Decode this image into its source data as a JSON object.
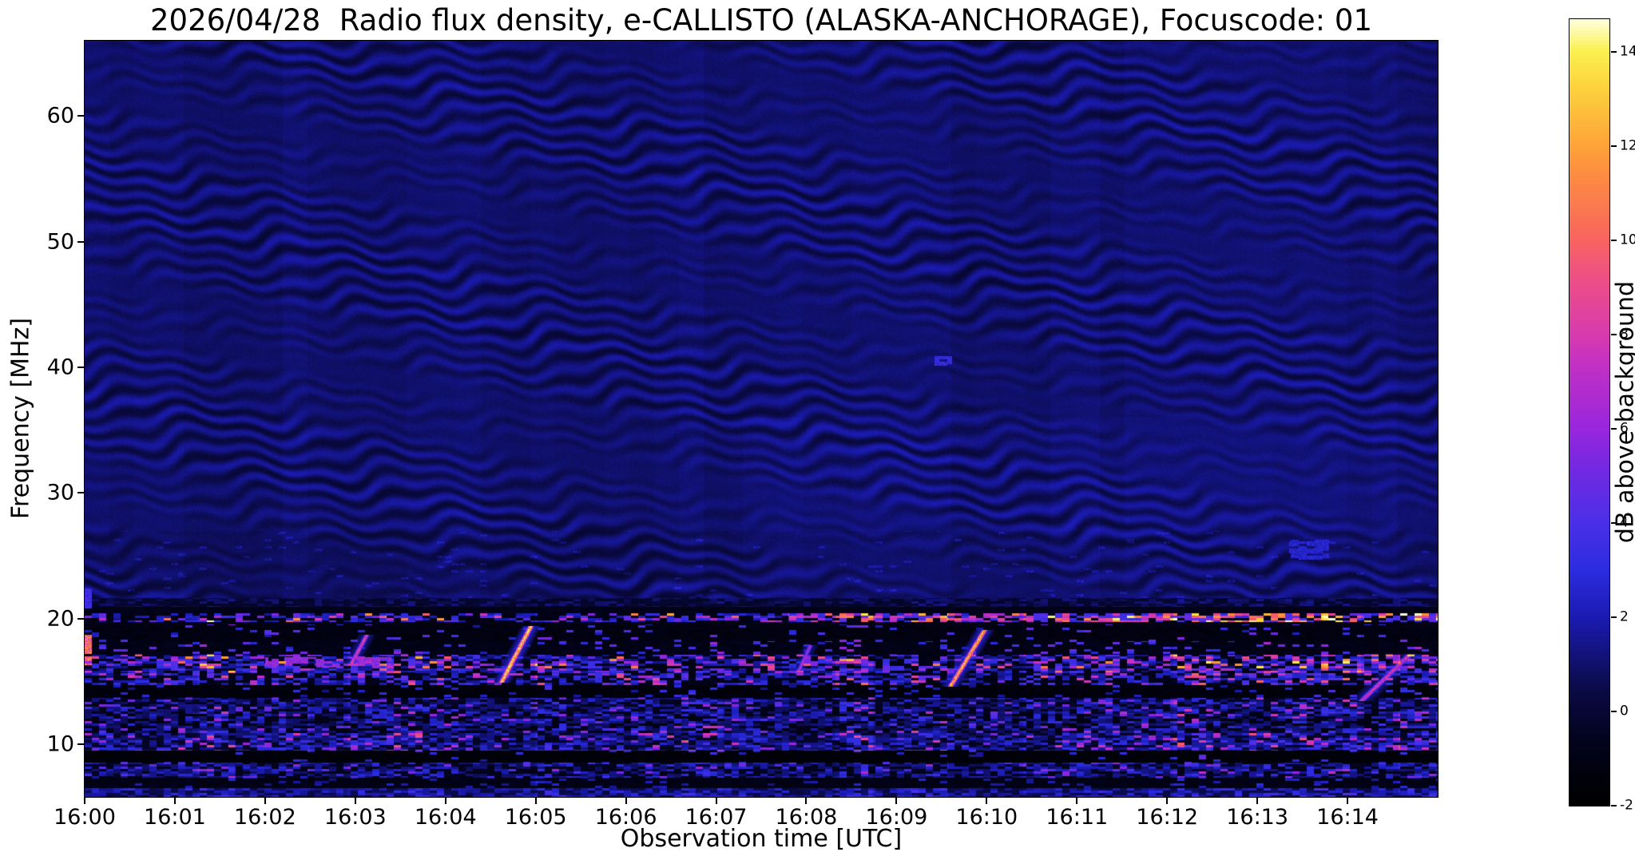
{
  "chart_data": {
    "type": "heatmap",
    "title": "2026/04/28  Radio flux density, e-CALLISTO (ALASKA-ANCHORAGE), Focuscode: 01",
    "date": "2026/04/28",
    "station": "ALASKA-ANCHORAGE",
    "focuscode": "01",
    "xlabel": "Observation time [UTC]",
    "ylabel": "Frequency [MHz]",
    "colorbar_label": "dB above background",
    "x_ticks": [
      "16:00",
      "16:01",
      "16:02",
      "16:03",
      "16:04",
      "16:05",
      "16:06",
      "16:07",
      "16:08",
      "16:09",
      "16:10",
      "16:11",
      "16:12",
      "16:13",
      "16:14"
    ],
    "x_tick_minutes": [
      0,
      1,
      2,
      3,
      4,
      5,
      6,
      7,
      8,
      9,
      10,
      11,
      12,
      13,
      14
    ],
    "x_range_minutes": [
      0,
      15
    ],
    "y_ticks": [
      10,
      20,
      30,
      40,
      50,
      60
    ],
    "y_range_mhz": [
      5.8,
      66
    ],
    "colorbar_ticks": [
      -2,
      0,
      2,
      4,
      6,
      8,
      10,
      12,
      14
    ],
    "value_range_db": [
      -2,
      14.7
    ],
    "layout_hints": {
      "grid": false,
      "legend": "none",
      "colorbar_position": "right",
      "y_axis_direction": "up"
    },
    "colormap_stops": [
      [
        0.0,
        "#000000"
      ],
      [
        0.08,
        "#03031c"
      ],
      [
        0.145,
        "#0a0a44"
      ],
      [
        0.24,
        "#1b1bb3"
      ],
      [
        0.3,
        "#2c2ce0"
      ],
      [
        0.36,
        "#4b2fe8"
      ],
      [
        0.44,
        "#7a28e0"
      ],
      [
        0.48,
        "#9926dd"
      ],
      [
        0.56,
        "#c231c4"
      ],
      [
        0.6,
        "#d83bae"
      ],
      [
        0.68,
        "#f0527f"
      ],
      [
        0.72,
        "#f9645f"
      ],
      [
        0.8,
        "#fd8b41"
      ],
      [
        0.84,
        "#fda338"
      ],
      [
        0.92,
        "#fcd73e"
      ],
      [
        0.96,
        "#fbf04f"
      ],
      [
        1.0,
        "#ffffe0"
      ]
    ],
    "features": [
      "Wavy blue interference ripple pattern across ~22-66 MHz for the whole 15 minutes",
      "Intermittent horizontal RFI line near 20 MHz, noticeably brighter after ~16:08",
      "Broadband noisy RFI bands with bright pink/orange speckles below ~20 MHz",
      "Dark (below-background) horizontal lanes near 9, 14 and 18-19.5 MHz",
      "Bright drifting ionosonde-like streaks near 16:03, 16:05, 16:08, 16:10 and 16:14 between ~13-19.5 MHz",
      "Small bright patch near 40.5 MHz at about 16:09.5"
    ],
    "rfi_bands": [
      {
        "f0": 20.9,
        "f1": 21.6,
        "levels": [
          [
            0.6,
            -0.4,
            0.5
          ],
          [
            1.01,
            0.5,
            0.8
          ]
        ]
      },
      {
        "f0": 20.45,
        "f1": 20.9,
        "levels": [
          [
            1.01,
            -1.0,
            0.4
          ]
        ]
      },
      {
        "f0": 19.7,
        "f1": 20.45,
        "t_split": 7.8,
        "levels": [
          [
            0.5,
            -1.2,
            0.4
          ],
          [
            0.8,
            1.8,
            1.5
          ],
          [
            0.95,
            4.0,
            2.5
          ],
          [
            1.01,
            8.0,
            4.0
          ]
        ],
        "levels_late": [
          [
            0.25,
            -1.0,
            0.4
          ],
          [
            0.5,
            3.0,
            1.5
          ],
          [
            0.82,
            7.0,
            2.5
          ],
          [
            1.01,
            10.0,
            4.0
          ]
        ]
      },
      {
        "f0": 19.55,
        "f1": 19.7,
        "levels": [
          [
            1.01,
            -1.1,
            0.4
          ]
        ]
      },
      {
        "f0": 18.2,
        "f1": 19.55,
        "levels": [
          [
            0.95,
            -1.4,
            0.5
          ],
          [
            1.01,
            2.0,
            3.0
          ]
        ]
      },
      {
        "f0": 17.1,
        "f1": 18.2,
        "levels": [
          [
            0.9,
            -1.2,
            0.6
          ],
          [
            1.01,
            2.5,
            3.0
          ]
        ]
      },
      {
        "f0": 15.7,
        "f1": 17.1,
        "levels": [
          [
            0.35,
            -1.2,
            0.5
          ],
          [
            0.6,
            1.2,
            1.0
          ],
          [
            0.82,
            3.0,
            1.5
          ],
          [
            0.95,
            5.5,
            2.0
          ],
          [
            1.01,
            9.0,
            3.0
          ]
        ]
      },
      {
        "f0": 14.7,
        "f1": 15.7,
        "levels": [
          [
            0.45,
            -1.0,
            0.5
          ],
          [
            0.7,
            1.5,
            1.0
          ],
          [
            0.9,
            3.0,
            1.2
          ],
          [
            1.01,
            6.0,
            3.0
          ]
        ]
      },
      {
        "f0": 13.7,
        "f1": 14.7,
        "levels": [
          [
            0.93,
            -1.6,
            0.4
          ],
          [
            1.01,
            1.5,
            2.0
          ]
        ]
      },
      {
        "f0": 12.5,
        "f1": 13.7,
        "levels": [
          [
            0.4,
            -0.8,
            0.5
          ],
          [
            0.75,
            0.8,
            0.8
          ],
          [
            0.93,
            2.2,
            1.0
          ],
          [
            1.01,
            4.5,
            2.0
          ]
        ]
      },
      {
        "f0": 10.9,
        "f1": 12.5,
        "levels": [
          [
            0.35,
            -1.2,
            0.5
          ],
          [
            0.7,
            0.6,
            0.8
          ],
          [
            0.92,
            2.0,
            1.0
          ],
          [
            1.01,
            4.0,
            3.0
          ]
        ]
      },
      {
        "f0": 9.5,
        "f1": 10.9,
        "levels": [
          [
            0.3,
            -0.6,
            0.5
          ],
          [
            0.65,
            1.0,
            0.8
          ],
          [
            0.9,
            2.5,
            1.0
          ],
          [
            1.01,
            5.0,
            3.0
          ]
        ]
      },
      {
        "f0": 8.55,
        "f1": 9.5,
        "levels": [
          [
            0.96,
            -1.7,
            0.3
          ],
          [
            1.01,
            2.0,
            2.0
          ]
        ]
      },
      {
        "f0": 7.3,
        "f1": 8.55,
        "levels": [
          [
            0.35,
            -0.9,
            0.5
          ],
          [
            0.7,
            0.8,
            0.8
          ],
          [
            0.93,
            2.0,
            1.0
          ],
          [
            1.01,
            4.0,
            2.0
          ]
        ]
      },
      {
        "f0": 6.5,
        "f1": 7.3,
        "levels": [
          [
            0.9,
            -1.2,
            0.5
          ],
          [
            1.01,
            1.5,
            1.0
          ]
        ]
      },
      {
        "f0": 5.8,
        "f1": 6.5,
        "levels": [
          [
            0.4,
            0.3,
            0.5
          ],
          [
            0.8,
            1.5,
            0.8
          ],
          [
            1.01,
            2.5,
            1.0
          ]
        ]
      }
    ],
    "bursts": [
      {
        "t0": 2.95,
        "f_lo": 16.3,
        "f_hi": 18.7,
        "drift_min": 0.18,
        "half_width_min": 0.035,
        "peak_db": 8
      },
      {
        "t0": 4.62,
        "f_lo": 14.9,
        "f_hi": 19.4,
        "drift_min": 0.33,
        "half_width_min": 0.04,
        "peak_db": 13
      },
      {
        "t0": 7.9,
        "f_lo": 15.6,
        "f_hi": 17.9,
        "drift_min": 0.15,
        "half_width_min": 0.03,
        "peak_db": 6.5
      },
      {
        "t0": 9.6,
        "f_lo": 14.6,
        "f_hi": 19.1,
        "drift_min": 0.38,
        "half_width_min": 0.04,
        "peak_db": 12
      },
      {
        "t0": 14.15,
        "f_lo": 13.4,
        "f_hi": 17.2,
        "drift_min": 0.55,
        "half_width_min": 0.05,
        "peak_db": 7.5
      }
    ],
    "patches": [
      {
        "t0": 0.0,
        "t1": 0.08,
        "f0": 16.3,
        "f1": 18.7,
        "db": 10.0,
        "gate": 0.15
      },
      {
        "t0": 0.0,
        "t1": 0.08,
        "f0": 20.8,
        "f1": 22.4,
        "db": 3.5,
        "gate": 0.2
      },
      {
        "t0": 2.0,
        "t1": 3.4,
        "f0": 16.1,
        "f1": 16.9,
        "db": 6.0,
        "gate": 0.5
      },
      {
        "t0": 9.42,
        "t1": 9.62,
        "f0": 40.1,
        "f1": 40.9,
        "db": 3.2,
        "gate": 0.25
      },
      {
        "t0": 13.35,
        "t1": 13.8,
        "f0": 24.7,
        "f1": 26.3,
        "db": 2.6,
        "gate": 0.3
      }
    ]
  }
}
